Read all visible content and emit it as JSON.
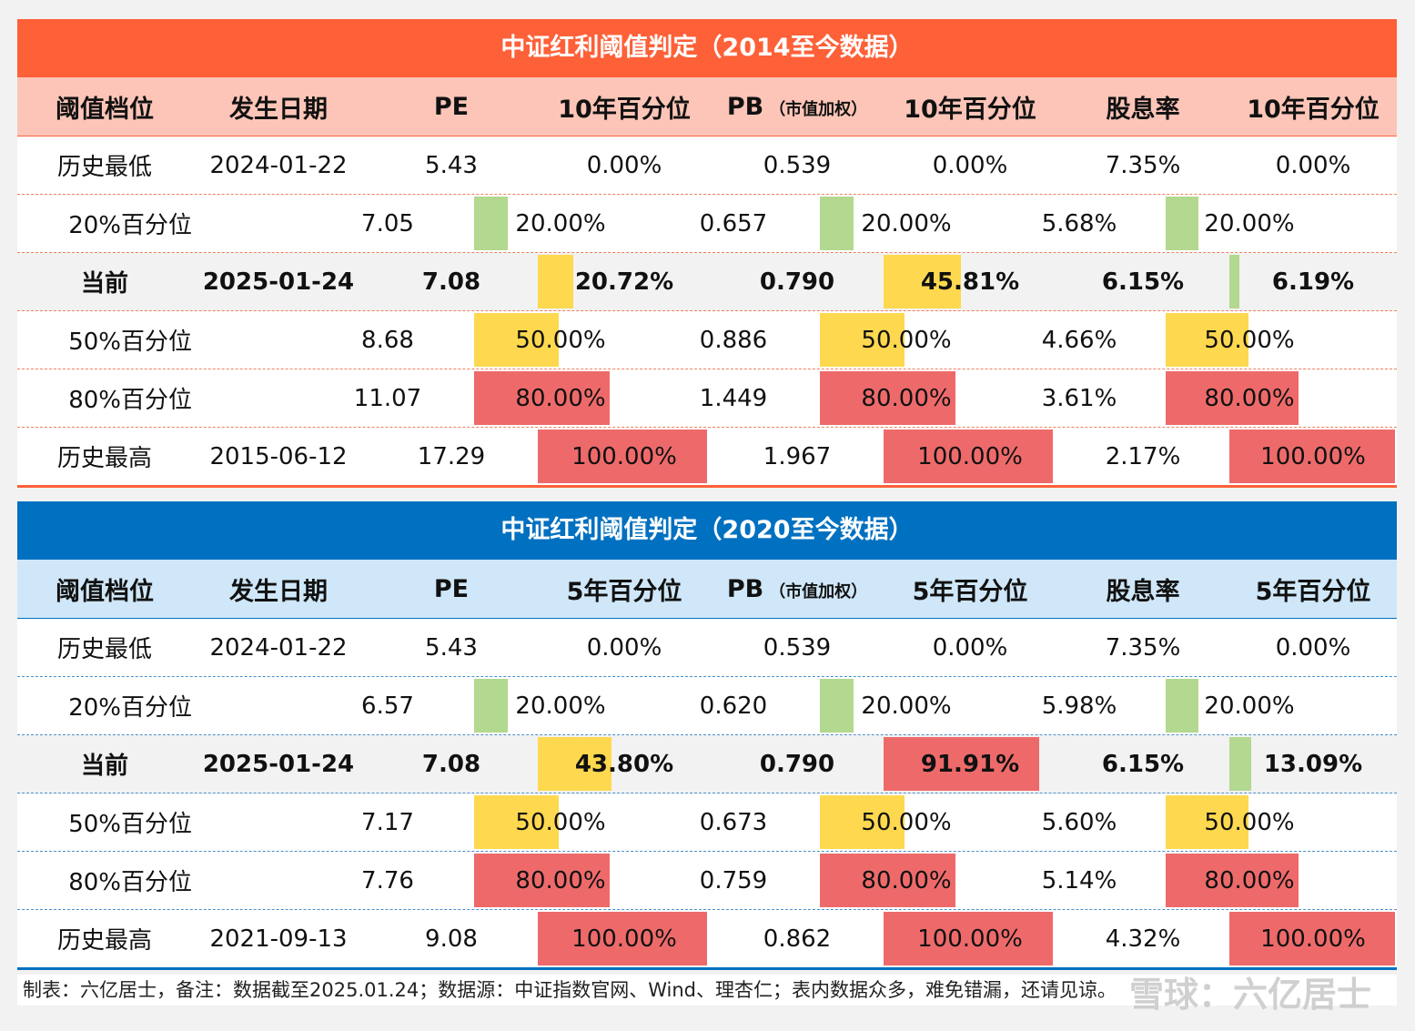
{
  "colors": {
    "green": "#b3d88f",
    "yellow": "#fed84f",
    "red": "#ee6a6a",
    "orange_header": "#fe6038",
    "blue_header": "#0070c0"
  },
  "tables": [
    {
      "title": "中证红利阈值判定（2014至今数据）",
      "headers": [
        "阈值档位",
        "发生日期",
        "PE",
        "10年百分位",
        "PB",
        "10年百分位",
        "股息率",
        "10年百分位"
      ],
      "pb_note": "（市值加权）",
      "rows": [
        {
          "label": "历史最低",
          "date": "2024-01-22",
          "pe": "5.43",
          "pe_pct": "0.00%",
          "pe_fill": 0.0,
          "pe_color": "none",
          "pb": "0.539",
          "pb_pct": "0.00%",
          "pb_fill": 0.0,
          "pb_color": "none",
          "dy": "7.35%",
          "dy_pct": "0.00%",
          "dy_fill": 0.0,
          "dy_color": "none"
        },
        {
          "label": "20%百分位",
          "date": "",
          "pe": "7.05",
          "pe_pct": "20.00%",
          "pe_fill": 0.2,
          "pe_color": "green",
          "pb": "0.657",
          "pb_pct": "20.00%",
          "pb_fill": 0.2,
          "pb_color": "green",
          "dy": "5.68%",
          "dy_pct": "20.00%",
          "dy_fill": 0.2,
          "dy_color": "green"
        },
        {
          "label": "当前",
          "date": "2025-01-24",
          "pe": "7.08",
          "pe_pct": "20.72%",
          "pe_fill": 0.2072,
          "pe_color": "yellow",
          "pb": "0.790",
          "pb_pct": "45.81%",
          "pb_fill": 0.4581,
          "pb_color": "yellow",
          "dy": "6.15%",
          "dy_pct": "6.19%",
          "dy_fill": 0.0619,
          "dy_color": "green",
          "current": true
        },
        {
          "label": "50%百分位",
          "date": "",
          "pe": "8.68",
          "pe_pct": "50.00%",
          "pe_fill": 0.5,
          "pe_color": "yellow",
          "pb": "0.886",
          "pb_pct": "50.00%",
          "pb_fill": 0.5,
          "pb_color": "yellow",
          "dy": "4.66%",
          "dy_pct": "50.00%",
          "dy_fill": 0.5,
          "dy_color": "yellow"
        },
        {
          "label": "80%百分位",
          "date": "",
          "pe": "11.07",
          "pe_pct": "80.00%",
          "pe_fill": 0.8,
          "pe_color": "red",
          "pb": "1.449",
          "pb_pct": "80.00%",
          "pb_fill": 0.8,
          "pb_color": "red",
          "dy": "3.61%",
          "dy_pct": "80.00%",
          "dy_fill": 0.8,
          "dy_color": "red"
        },
        {
          "label": "历史最高",
          "date": "2015-06-12",
          "pe": "17.29",
          "pe_pct": "100.00%",
          "pe_fill": 1.0,
          "pe_color": "red",
          "pb": "1.967",
          "pb_pct": "100.00%",
          "pb_fill": 1.0,
          "pb_color": "red",
          "dy": "2.17%",
          "dy_pct": "100.00%",
          "dy_fill": 1.0,
          "dy_color": "red"
        }
      ]
    },
    {
      "title": "中证红利阈值判定（2020至今数据）",
      "headers": [
        "阈值档位",
        "发生日期",
        "PE",
        "5年百分位",
        "PB",
        "5年百分位",
        "股息率",
        "5年百分位"
      ],
      "pb_note": "（市值加权）",
      "rows": [
        {
          "label": "历史最低",
          "date": "2024-01-22",
          "pe": "5.43",
          "pe_pct": "0.00%",
          "pe_fill": 0.0,
          "pe_color": "none",
          "pb": "0.539",
          "pb_pct": "0.00%",
          "pb_fill": 0.0,
          "pb_color": "none",
          "dy": "7.35%",
          "dy_pct": "0.00%",
          "dy_fill": 0.0,
          "dy_color": "none"
        },
        {
          "label": "20%百分位",
          "date": "",
          "pe": "6.57",
          "pe_pct": "20.00%",
          "pe_fill": 0.2,
          "pe_color": "green",
          "pb": "0.620",
          "pb_pct": "20.00%",
          "pb_fill": 0.2,
          "pb_color": "green",
          "dy": "5.98%",
          "dy_pct": "20.00%",
          "dy_fill": 0.2,
          "dy_color": "green"
        },
        {
          "label": "当前",
          "date": "2025-01-24",
          "pe": "7.08",
          "pe_pct": "43.80%",
          "pe_fill": 0.438,
          "pe_color": "yellow",
          "pb": "0.790",
          "pb_pct": "91.91%",
          "pb_fill": 0.9191,
          "pb_color": "red",
          "dy": "6.15%",
          "dy_pct": "13.09%",
          "dy_fill": 0.1309,
          "dy_color": "green",
          "current": true
        },
        {
          "label": "50%百分位",
          "date": "",
          "pe": "7.17",
          "pe_pct": "50.00%",
          "pe_fill": 0.5,
          "pe_color": "yellow",
          "pb": "0.673",
          "pb_pct": "50.00%",
          "pb_fill": 0.5,
          "pb_color": "yellow",
          "dy": "5.60%",
          "dy_pct": "50.00%",
          "dy_fill": 0.5,
          "dy_color": "yellow"
        },
        {
          "label": "80%百分位",
          "date": "",
          "pe": "7.76",
          "pe_pct": "80.00%",
          "pe_fill": 0.8,
          "pe_color": "red",
          "pb": "0.759",
          "pb_pct": "80.00%",
          "pb_fill": 0.8,
          "pb_color": "red",
          "dy": "5.14%",
          "dy_pct": "80.00%",
          "dy_fill": 0.8,
          "dy_color": "red"
        },
        {
          "label": "历史最高",
          "date": "2021-09-13",
          "pe": "9.08",
          "pe_pct": "100.00%",
          "pe_fill": 1.0,
          "pe_color": "red",
          "pb": "0.862",
          "pb_pct": "100.00%",
          "pb_fill": 1.0,
          "pb_color": "red",
          "dy": "4.32%",
          "dy_pct": "100.00%",
          "dy_fill": 1.0,
          "dy_color": "red"
        }
      ]
    }
  ],
  "footer": "制表：六亿居士，备注：数据截至2025.01.24；数据源：中证指数官网、Wind、理杏仁；表内数据众多，难免错漏，还请见谅。",
  "watermark": "雪球：六亿居士"
}
